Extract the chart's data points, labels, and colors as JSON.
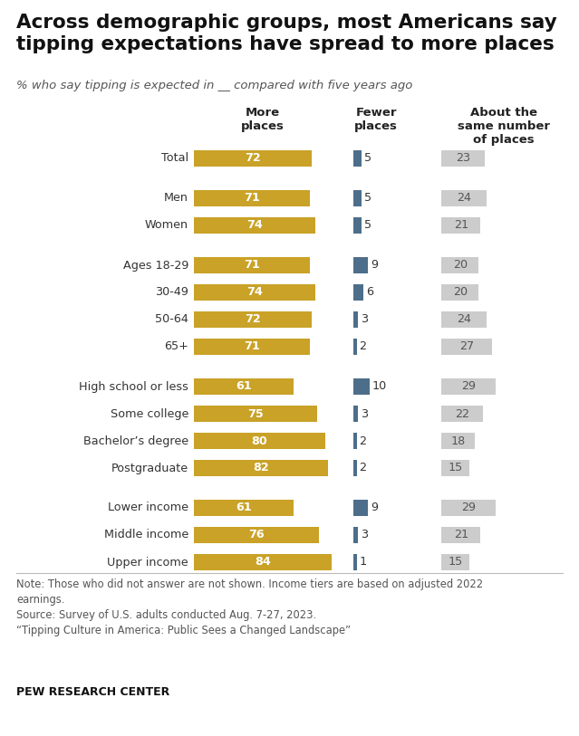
{
  "title": "Across demographic groups, most Americans say\ntipping expectations have spread to more places",
  "subtitle": "% who say tipping is expected in __ compared with five years ago",
  "col_headers": [
    "More\nplaces",
    "Fewer\nplaces",
    "About the\nsame number\nof places"
  ],
  "categories": [
    "Total",
    "Men",
    "Women",
    "Ages 18-29",
    "30-49",
    "50-64",
    "65+",
    "High school or less",
    "Some college",
    "Bachelor’s degree",
    "Postgraduate",
    "Lower income",
    "Middle income",
    "Upper income"
  ],
  "more_values": [
    72,
    71,
    74,
    71,
    74,
    72,
    71,
    61,
    75,
    80,
    82,
    61,
    76,
    84
  ],
  "fewer_values": [
    5,
    5,
    5,
    9,
    6,
    3,
    2,
    10,
    3,
    2,
    2,
    9,
    3,
    1
  ],
  "same_values": [
    23,
    24,
    21,
    20,
    20,
    24,
    27,
    29,
    22,
    18,
    15,
    29,
    21,
    15
  ],
  "more_color": "#C9A227",
  "fewer_color": "#4D6E8A",
  "same_color": "#CCCCCC",
  "note_line1": "Note: Those who did not answer are not shown. Income tiers are based on adjusted 2022",
  "note_line2": "earnings.",
  "note_line3": "Source: Survey of U.S. adults conducted Aug. 7-27, 2023.",
  "note_line4": "“Tipping Culture in America: Public Sees a Changed Landscape”",
  "source_label": "PEW RESEARCH CENTER",
  "bg_color": "#FFFFFF",
  "text_color": "#333333",
  "group_starts": [
    1,
    3,
    7,
    11
  ]
}
